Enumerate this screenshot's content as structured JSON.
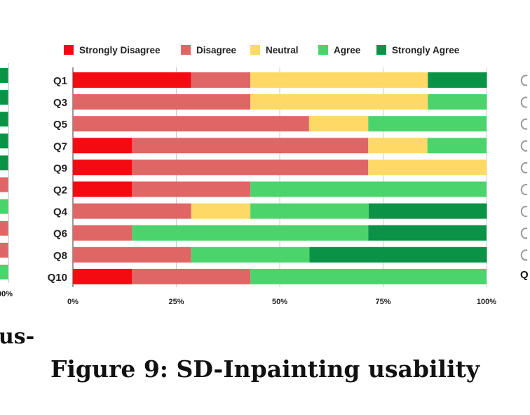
{
  "figure": {
    "caption": "Figure 9: SD-Inpainting usability",
    "left_fragment_text": "us-",
    "left_fragment_tick": "00%",
    "right_fragment_label": "Q"
  },
  "chart_data": {
    "type": "bar",
    "orientation": "horizontal",
    "stacked": true,
    "title": "",
    "xlabel": "",
    "ylabel": "",
    "xlim": [
      0,
      100
    ],
    "xticks": [
      "0%",
      "25%",
      "50%",
      "75%",
      "100%"
    ],
    "grid": true,
    "legend_position": "top",
    "categories": [
      "Q1",
      "Q3",
      "Q5",
      "Q7",
      "Q9",
      "Q2",
      "Q4",
      "Q6",
      "Q8",
      "Q10"
    ],
    "series": [
      {
        "name": "Strongly Disagree",
        "color": "#f40b12",
        "values": [
          28.6,
          0,
          0,
          14.3,
          14.3,
          14.3,
          0,
          0,
          0,
          14.3
        ]
      },
      {
        "name": "Disagree",
        "color": "#e06666",
        "values": [
          14.3,
          42.9,
          57.1,
          57.1,
          57.1,
          28.6,
          28.6,
          14.3,
          28.6,
          28.6
        ]
      },
      {
        "name": "Neutral",
        "color": "#ffd966",
        "values": [
          42.9,
          42.9,
          14.3,
          14.3,
          28.6,
          0,
          14.3,
          0,
          0,
          0
        ]
      },
      {
        "name": "Agree",
        "color": "#4cd46c",
        "values": [
          0,
          14.3,
          28.6,
          14.3,
          0,
          57.1,
          28.6,
          57.1,
          28.6,
          57.1
        ]
      },
      {
        "name": "Strongly Agree",
        "color": "#0a9347",
        "values": [
          14.3,
          0,
          0,
          0,
          0,
          0,
          28.6,
          28.6,
          42.9,
          0
        ]
      }
    ],
    "left_fragment_series_colors": [
      "#0a9347",
      "#0a9347",
      "#0a9347",
      "#0a9347",
      "#0a9347",
      "#e06666",
      "#4cd46c",
      "#e06666",
      "#e06666",
      "#4cd46c"
    ]
  }
}
